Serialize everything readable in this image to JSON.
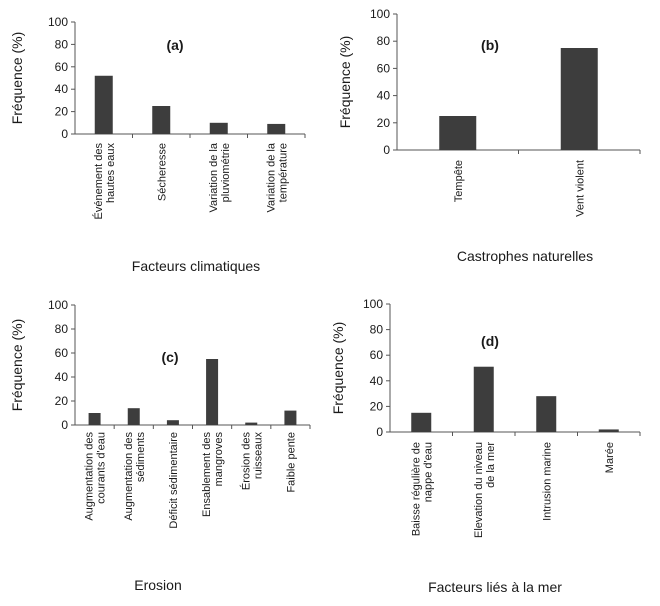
{
  "chart_data": [
    {
      "id": "a",
      "type": "bar",
      "panel_label": "(a)",
      "xlabel": "Facteurs climatiques",
      "ylabel": "Fréquence (%)",
      "ylim": [
        0,
        100
      ],
      "yticks": [
        0,
        20,
        40,
        60,
        80,
        100
      ],
      "categories": [
        [
          "Événement des",
          "hautes eaux"
        ],
        [
          "Sécheresse"
        ],
        [
          "Variation de la",
          "pluviométrie"
        ],
        [
          "Variation de la",
          "température"
        ]
      ],
      "values": [
        52,
        25,
        10,
        9
      ],
      "bar_color": "#3d3d3d",
      "grid": false
    },
    {
      "id": "b",
      "type": "bar",
      "panel_label": "(b)",
      "xlabel": "Castrophes naturelles",
      "ylabel": "Fréquence (%)",
      "ylim": [
        0,
        100
      ],
      "yticks": [
        0,
        20,
        40,
        60,
        80,
        100
      ],
      "categories": [
        [
          "Tempête"
        ],
        [
          "Vent violent"
        ]
      ],
      "values": [
        25,
        75
      ],
      "bar_color": "#3d3d3d",
      "grid": false
    },
    {
      "id": "c",
      "type": "bar",
      "panel_label": "(c)",
      "xlabel": "Erosion",
      "ylabel": "Fréquence (%)",
      "ylim": [
        0,
        100
      ],
      "yticks": [
        0,
        20,
        40,
        60,
        80,
        100
      ],
      "categories": [
        [
          "Augmentation des",
          "courants d'eau"
        ],
        [
          "Augmentation des",
          "sédiments"
        ],
        [
          "Déficit sédimentaire"
        ],
        [
          "Ensablement des",
          "mangroves"
        ],
        [
          "Érosion des",
          "ruisseaux"
        ],
        [
          "Faible pente"
        ]
      ],
      "values": [
        10,
        14,
        4,
        55,
        2,
        12
      ],
      "bar_color": "#3d3d3d",
      "grid": false
    },
    {
      "id": "d",
      "type": "bar",
      "panel_label": "(d)",
      "xlabel": "Facteurs liés à la mer",
      "ylabel": "Fréquence (%)",
      "ylim": [
        0,
        100
      ],
      "yticks": [
        0,
        20,
        40,
        60,
        80,
        100
      ],
      "categories": [
        [
          "Baisse régulière de",
          "nappe d'eau"
        ],
        [
          "Elevation du niveau",
          "de la mer"
        ],
        [
          "Intrusion marine"
        ],
        [
          "Marée"
        ]
      ],
      "values": [
        15,
        51,
        28,
        2
      ],
      "bar_color": "#3d3d3d",
      "grid": false
    }
  ]
}
